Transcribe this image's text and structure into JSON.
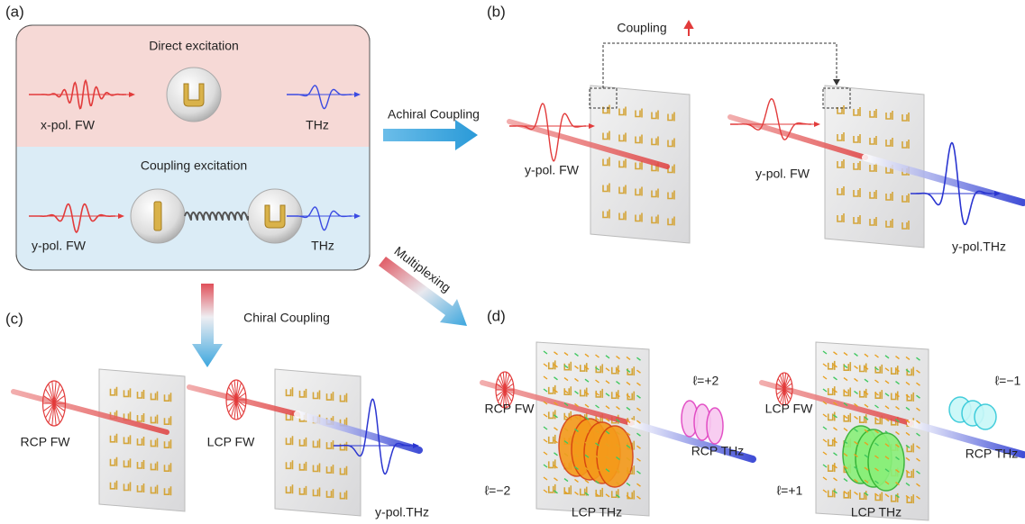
{
  "panel_a": {
    "label": "(a)",
    "direct_title": "Direct excitation",
    "direct_input": "x-pol. FW",
    "direct_output": "THz",
    "coupling_title": "Coupling excitation",
    "coupling_input": "y-pol. FW",
    "coupling_output": "THz"
  },
  "arrows": {
    "achiral": "Achiral Coupling",
    "chiral": "Chiral Coupling",
    "multiplexing": "Multiplexing"
  },
  "panel_b": {
    "label": "(b)",
    "coupling": "Coupling",
    "left_input": "y-pol. FW",
    "right_input": "y-pol. FW",
    "right_output": "y-pol.THz"
  },
  "panel_c": {
    "label": "(c)",
    "left_input": "RCP FW",
    "right_input": "LCP FW",
    "right_output": "y-pol.THz"
  },
  "panel_d": {
    "label": "(d)",
    "left": {
      "input": "RCP FW",
      "rcp_mode": "ℓ=+2",
      "rcp_output": "RCP THz",
      "lcp_mode": "ℓ=−2",
      "lcp_output": "LCP THz"
    },
    "right": {
      "input": "LCP FW",
      "rcp_mode": "ℓ=−1",
      "rcp_output": "RCP THz",
      "lcp_mode": "ℓ=+1",
      "lcp_output": "LCP THz"
    }
  }
}
